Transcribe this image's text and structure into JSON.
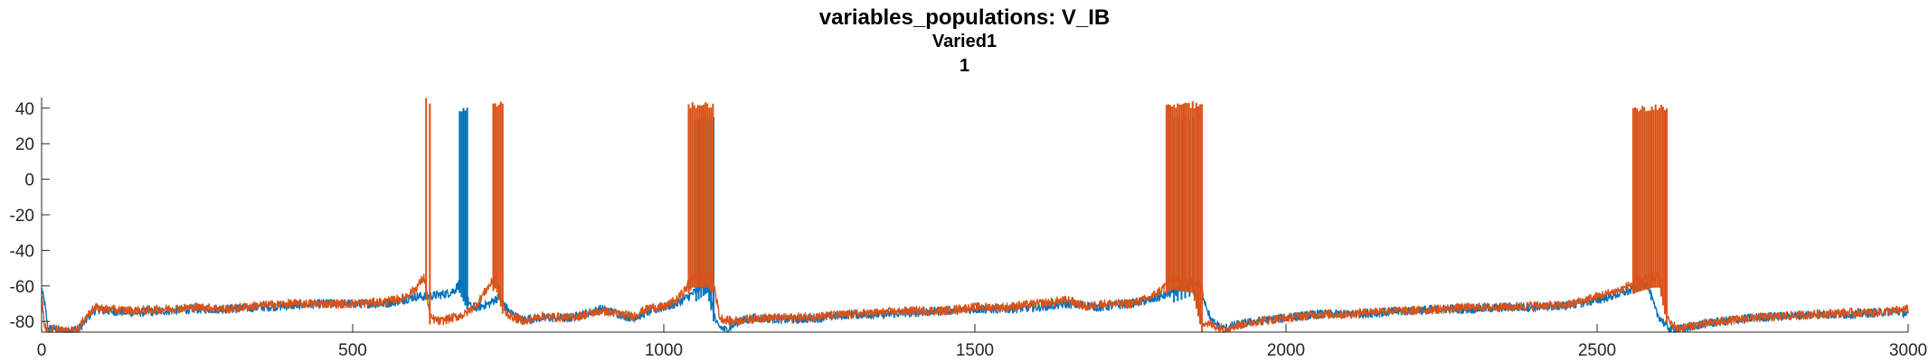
{
  "chart_data": {
    "type": "line",
    "title": "variables_populations: V_IB",
    "subtitle": [
      "Varied1",
      "1"
    ],
    "xlabel": "",
    "ylabel": "",
    "xlim": [
      0,
      3000
    ],
    "ylim": [
      -86,
      46
    ],
    "x_ticks": [
      0,
      500,
      1000,
      1500,
      2000,
      2500,
      3000
    ],
    "y_ticks": [
      -80,
      -60,
      -40,
      -20,
      0,
      20,
      40
    ],
    "grid": false,
    "legend": "none",
    "series": [
      {
        "color": "#0072BD",
        "x": [
          0,
          5,
          10,
          20,
          40,
          60,
          70,
          80,
          90,
          100,
          150,
          200,
          250,
          300,
          350,
          400,
          450,
          500,
          550,
          580,
          600,
          620,
          640,
          655,
          665,
          672,
          690,
          700,
          720,
          735,
          750,
          770,
          800,
          850,
          900,
          950,
          980,
          1000,
          1020,
          1040,
          1055,
          1070,
          1085,
          1100,
          1120,
          1150,
          1200,
          1250,
          1300,
          1350,
          1400,
          1450,
          1500,
          1550,
          1600,
          1650,
          1680,
          1700,
          1750,
          1780,
          1800,
          1815,
          1830,
          1845,
          1860,
          1880,
          1900,
          1920,
          1950,
          2000,
          2050,
          2100,
          2150,
          2200,
          2250,
          2300,
          2350,
          2400,
          2450,
          2500,
          2540,
          2560,
          2580,
          2595,
          2610,
          2620,
          2640,
          2660,
          2700,
          2750,
          2800,
          2850,
          2900,
          2950,
          2980,
          3000
        ],
        "y": [
          -62,
          -70,
          -84,
          -84,
          -86,
          -84,
          -80,
          -75,
          -73,
          -74,
          -75,
          -74,
          -73,
          -73,
          -72,
          -71,
          -70,
          -70,
          -70,
          -68,
          -66,
          -66,
          -65,
          -64,
          -62,
          -58,
          -72,
          -72,
          -70,
          -66,
          -74,
          -79,
          -78,
          -78,
          -73,
          -78,
          -74,
          -72,
          -70,
          -66,
          -62,
          -58,
          -82,
          -85,
          -80,
          -78,
          -79,
          -78,
          -76,
          -76,
          -75,
          -74,
          -73,
          -73,
          -72,
          -70,
          -71,
          -72,
          -70,
          -68,
          -66,
          -64,
          -62,
          -60,
          -58,
          -80,
          -84,
          -82,
          -80,
          -78,
          -76,
          -76,
          -75,
          -74,
          -73,
          -73,
          -72,
          -72,
          -71,
          -68,
          -64,
          -62,
          -58,
          -75,
          -82,
          -85,
          -84,
          -82,
          -80,
          -78,
          -77,
          -76,
          -76,
          -75,
          -74,
          -76
        ],
        "spikes": [
          {
            "x": [
              672,
              675,
              678,
              681,
              684
            ],
            "peak": 42
          },
          {
            "x": [
              1052,
              1056,
              1060,
              1064,
              1067,
              1070,
              1073,
              1076,
              1080
            ],
            "peak": 36
          },
          {
            "x": [
              1820,
              1826,
              1832,
              1838,
              1845,
              1852
            ],
            "peak": 36
          }
        ]
      },
      {
        "color": "#D95319",
        "x": [
          0,
          5,
          10,
          20,
          40,
          60,
          70,
          80,
          90,
          100,
          150,
          200,
          250,
          300,
          350,
          400,
          450,
          500,
          550,
          580,
          600,
          615,
          625,
          640,
          660,
          680,
          700,
          715,
          730,
          745,
          760,
          780,
          800,
          850,
          900,
          950,
          980,
          1000,
          1020,
          1035,
          1045,
          1070,
          1080,
          1090,
          1110,
          1150,
          1200,
          1250,
          1300,
          1350,
          1400,
          1450,
          1500,
          1550,
          1600,
          1650,
          1680,
          1700,
          1750,
          1780,
          1800,
          1815,
          1850,
          1865,
          1880,
          1900,
          1950,
          2000,
          2050,
          2100,
          2150,
          2200,
          2250,
          2300,
          2350,
          2400,
          2450,
          2500,
          2540,
          2560,
          2590,
          2600,
          2615,
          2630,
          2660,
          2700,
          2750,
          2800,
          2850,
          2900,
          2950,
          2980,
          3000
        ],
        "y": [
          -66,
          -82,
          -86,
          -84,
          -86,
          -84,
          -78,
          -74,
          -72,
          -73,
          -74,
          -73,
          -72,
          -73,
          -71,
          -70,
          -70,
          -70,
          -69,
          -67,
          -62,
          -55,
          -78,
          -80,
          -78,
          -76,
          -70,
          -62,
          -55,
          -75,
          -78,
          -80,
          -77,
          -78,
          -74,
          -77,
          -72,
          -72,
          -68,
          -62,
          -55,
          -55,
          -58,
          -78,
          -80,
          -78,
          -78,
          -77,
          -76,
          -75,
          -74,
          -74,
          -72,
          -72,
          -70,
          -68,
          -72,
          -70,
          -70,
          -67,
          -62,
          -56,
          -58,
          -80,
          -82,
          -84,
          -80,
          -78,
          -76,
          -76,
          -74,
          -74,
          -73,
          -72,
          -72,
          -71,
          -71,
          -66,
          -62,
          -58,
          -55,
          -55,
          -80,
          -84,
          -82,
          -80,
          -78,
          -77,
          -76,
          -75,
          -75,
          -74,
          -73
        ],
        "spikes": [
          {
            "x": [
              618,
              624
            ],
            "peak": 46
          },
          {
            "x": [
              726,
              729,
              732,
              735,
              738,
              741
            ],
            "peak": 44
          },
          {
            "x": [
              1040,
              1043,
              1046,
              1049,
              1052,
              1055,
              1058,
              1061,
              1064,
              1067,
              1070,
              1073,
              1076,
              1079
            ],
            "peak": 44
          },
          {
            "x": [
              1808,
              1811,
              1814,
              1817,
              1820,
              1823,
              1826,
              1829,
              1832,
              1835,
              1838,
              1841,
              1844,
              1847,
              1850,
              1853,
              1856,
              1859,
              1862,
              1865
            ],
            "peak": 44
          },
          {
            "x": [
              2558,
              2561,
              2564,
              2567,
              2570,
              2573,
              2576,
              2579,
              2582,
              2585,
              2588,
              2591,
              2594,
              2597,
              2600,
              2603,
              2606,
              2609,
              2612
            ],
            "peak": 42
          }
        ]
      }
    ]
  }
}
